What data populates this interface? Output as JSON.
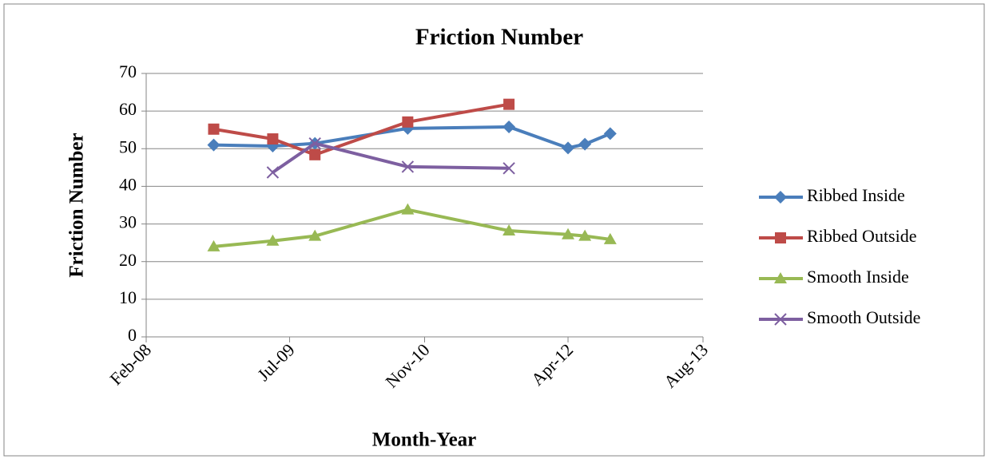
{
  "chart_data": {
    "type": "line",
    "title": "Friction Number",
    "x_label": "Month-Year",
    "y_label": "Friction Number",
    "x": [
      "2008-10",
      "2009-05",
      "2009-10",
      "2010-09",
      "2011-09",
      "2012-04",
      "2012-06",
      "2012-09"
    ],
    "xlim": [
      "2008-02",
      "2013-08"
    ],
    "xticks": [
      {
        "value": "2008-02",
        "label": "Feb-08"
      },
      {
        "value": "2009-07",
        "label": "Jul-09"
      },
      {
        "value": "2010-11",
        "label": "Nov-10"
      },
      {
        "value": "2012-04",
        "label": "Apr-12"
      },
      {
        "value": "2013-08",
        "label": "Aug-13"
      }
    ],
    "ylim": [
      0,
      70
    ],
    "yticks": [
      0,
      10,
      20,
      30,
      40,
      50,
      60,
      70
    ],
    "grid": true,
    "legend": "right",
    "series": [
      {
        "name": "Ribbed Inside",
        "color": "#4a7ebb",
        "marker": "diamond",
        "values": [
          51,
          50.7,
          51.4,
          55.4,
          55.8,
          50.2,
          51.2,
          54
        ]
      },
      {
        "name": "Ribbed Outside",
        "color": "#be4b48",
        "marker": "square",
        "values": [
          55.2,
          52.6,
          48.4,
          57.1,
          61.8,
          null,
          null,
          null
        ]
      },
      {
        "name": "Smooth Inside",
        "color": "#98b954",
        "marker": "triangle",
        "values": [
          24,
          25.5,
          26.8,
          33.8,
          28.2,
          27.2,
          26.8,
          25.9
        ]
      },
      {
        "name": "Smooth Outside",
        "color": "#7d5fa0",
        "marker": "x",
        "values": [
          null,
          43.7,
          51.4,
          45.2,
          44.8,
          null,
          null,
          null
        ]
      }
    ]
  }
}
